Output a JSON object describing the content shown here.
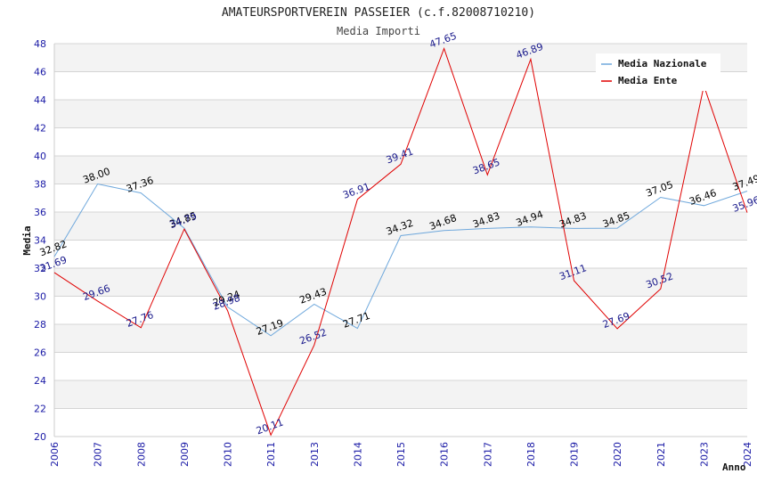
{
  "chart_data": {
    "type": "line",
    "title": "AMATEURSPORTVEREIN PASSEIER (c.f.82008710210)",
    "subtitle": "Media Importi",
    "xlabel": "Anno",
    "ylabel": "Media",
    "ylim": [
      20,
      48
    ],
    "yticks": [
      20,
      22,
      24,
      26,
      28,
      30,
      32,
      34,
      36,
      38,
      40,
      42,
      44,
      46,
      48
    ],
    "categories": [
      "2006",
      "2007",
      "2008",
      "2009",
      "2010",
      "2011",
      "2013",
      "2014",
      "2015",
      "2016",
      "2017",
      "2018",
      "2019",
      "2020",
      "2021",
      "2023",
      "2024"
    ],
    "series": [
      {
        "name": "Media Nazionale",
        "color": "#6fa8dc",
        "values": [
          32.82,
          38.0,
          37.36,
          34.85,
          29.24,
          27.19,
          29.43,
          27.71,
          34.32,
          34.68,
          34.83,
          34.94,
          34.83,
          34.85,
          37.05,
          36.46,
          37.49
        ],
        "labels": [
          "32.82",
          "38.00",
          "37.36",
          "34.85",
          "29.24",
          "27.19",
          "29.43",
          "27.71",
          "34.32",
          "34.68",
          "34.83",
          "34.94",
          "34.83",
          "34.85",
          "37.05",
          "36.46",
          "37.49"
        ]
      },
      {
        "name": "Media Ente",
        "color": "#e00000",
        "values": [
          31.69,
          29.66,
          27.76,
          34.79,
          28.98,
          20.11,
          26.52,
          36.91,
          39.41,
          47.65,
          38.65,
          46.89,
          31.11,
          27.69,
          30.52,
          45.0,
          35.96
        ],
        "labels": [
          "31.69",
          "29.66",
          "27.76",
          "34.79",
          "28.98",
          "20.11",
          "26.52",
          "36.91",
          "39.41",
          "47.65",
          "38.65",
          "46.89",
          "31.11",
          "27.69",
          "30.52",
          null,
          "35.96"
        ]
      }
    ],
    "legend_position": "top-right",
    "grid": true
  }
}
